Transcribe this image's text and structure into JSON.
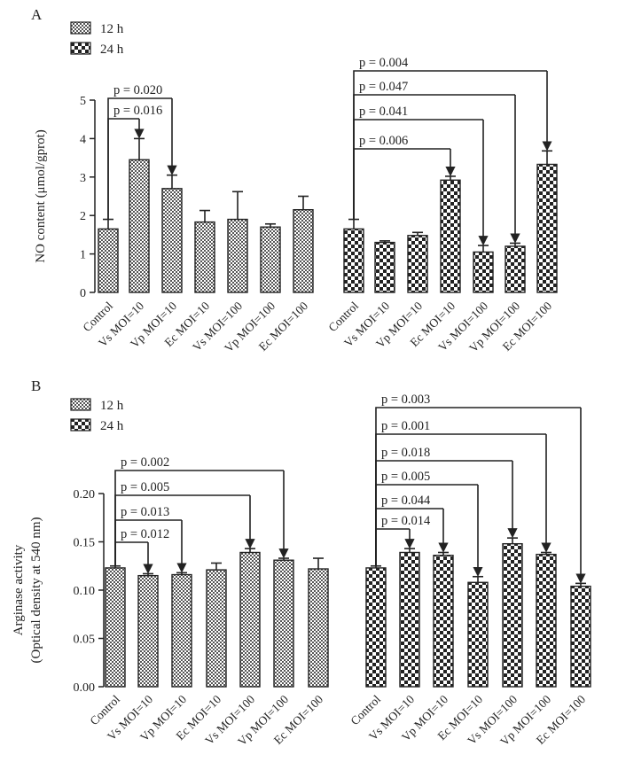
{
  "chart_data": [
    {
      "panel_label": "A",
      "type": "bar",
      "ylabel": "NO content (μmol/gprot)",
      "ylim": [
        0,
        5
      ],
      "yticks": [
        0,
        1,
        2,
        3,
        4,
        5
      ],
      "categories": [
        "Control",
        "Vs MOI=10",
        "Vp MOI=10",
        "Ec MOI=10",
        "Vs MOI=100",
        "Vp MOI=100",
        "Ec MOI=100"
      ],
      "series": [
        {
          "name": "12 h",
          "values": [
            1.65,
            3.45,
            2.7,
            1.83,
            1.9,
            1.7,
            2.15
          ],
          "errors": [
            0.25,
            0.55,
            0.35,
            0.3,
            0.72,
            0.08,
            0.35
          ]
        },
        {
          "name": "24 h",
          "values": [
            1.65,
            1.3,
            1.48,
            2.92,
            1.05,
            1.2,
            3.33
          ],
          "errors": [
            0.25,
            0.04,
            0.08,
            0.1,
            0.17,
            0.08,
            0.35
          ]
        }
      ],
      "comparisons": [
        {
          "series": 0,
          "to": 1,
          "label": "p = 0.016"
        },
        {
          "series": 0,
          "to": 2,
          "label": "p = 0.020"
        },
        {
          "series": 1,
          "to": 3,
          "label": "p = 0.006"
        },
        {
          "series": 1,
          "to": 4,
          "label": "p = 0.041"
        },
        {
          "series": 1,
          "to": 5,
          "label": "p = 0.047"
        },
        {
          "series": 1,
          "to": 6,
          "label": "p = 0.004"
        }
      ]
    },
    {
      "panel_label": "B",
      "type": "bar",
      "ylabel": "Arginase activity",
      "ylabel2": "(Optical density at 540 nm)",
      "ylim": [
        0,
        0.2
      ],
      "yticks": [
        "0.00",
        "0.05",
        "0.10",
        "0.15",
        "0.20"
      ],
      "categories": [
        "Control",
        "Vs MOI=10",
        "Vp MOI=10",
        "Ec MOI=10",
        "Vs MOI=100",
        "Vp MOI=100",
        "Ec MOI=100"
      ],
      "series": [
        {
          "name": "12 h",
          "values": [
            0.123,
            0.115,
            0.116,
            0.121,
            0.139,
            0.131,
            0.122
          ],
          "errors": [
            0.002,
            0.002,
            0.002,
            0.007,
            0.004,
            0.002,
            0.011
          ]
        },
        {
          "name": "24 h",
          "values": [
            0.123,
            0.139,
            0.136,
            0.108,
            0.148,
            0.137,
            0.104
          ],
          "errors": [
            0.002,
            0.004,
            0.003,
            0.006,
            0.006,
            0.002,
            0.003
          ]
        }
      ],
      "comparisons": [
        {
          "series": 0,
          "to": 1,
          "label": "p = 0.012"
        },
        {
          "series": 0,
          "to": 2,
          "label": "p = 0.013"
        },
        {
          "series": 0,
          "to": 4,
          "label": "p = 0.005"
        },
        {
          "series": 0,
          "to": 5,
          "label": "p = 0.002"
        },
        {
          "series": 1,
          "to": 1,
          "label": "p = 0.014"
        },
        {
          "series": 1,
          "to": 2,
          "label": "p = 0.044"
        },
        {
          "series": 1,
          "to": 3,
          "label": "p = 0.005"
        },
        {
          "series": 1,
          "to": 4,
          "label": "p = 0.018"
        },
        {
          "series": 1,
          "to": 5,
          "label": "p = 0.001"
        },
        {
          "series": 1,
          "to": 6,
          "label": "p = 0.003"
        }
      ]
    }
  ]
}
